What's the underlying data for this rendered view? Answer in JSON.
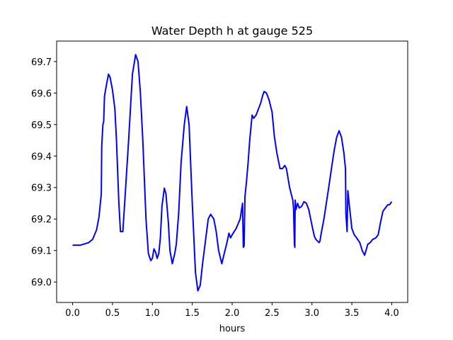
{
  "chart_data": {
    "type": "line",
    "title": "Water Depth h at gauge 525",
    "xlabel": "hours",
    "ylabel": "",
    "xlim": [
      -0.2,
      4.2
    ],
    "ylim": [
      68.935,
      69.765
    ],
    "xticks": [
      "0.0",
      "0.5",
      "1.0",
      "1.5",
      "2.0",
      "2.5",
      "3.0",
      "3.5",
      "4.0"
    ],
    "yticks": [
      "69.0",
      "69.1",
      "69.2",
      "69.3",
      "69.4",
      "69.5",
      "69.6",
      "69.7"
    ],
    "grid": false,
    "color": "#0000ff",
    "series": [
      {
        "name": "",
        "points": [
          [
            0.0,
            69.117
          ],
          [
            0.1,
            69.117
          ],
          [
            0.2,
            69.125
          ],
          [
            0.25,
            69.135
          ],
          [
            0.3,
            69.165
          ],
          [
            0.33,
            69.205
          ],
          [
            0.36,
            69.28
          ],
          [
            0.365,
            69.43
          ],
          [
            0.38,
            69.5
          ],
          [
            0.39,
            69.51
          ],
          [
            0.4,
            69.59
          ],
          [
            0.42,
            69.62
          ],
          [
            0.45,
            69.66
          ],
          [
            0.47,
            69.65
          ],
          [
            0.5,
            69.61
          ],
          [
            0.53,
            69.55
          ],
          [
            0.55,
            69.45
          ],
          [
            0.58,
            69.25
          ],
          [
            0.6,
            69.16
          ],
          [
            0.63,
            69.16
          ],
          [
            0.65,
            69.24
          ],
          [
            0.7,
            69.44
          ],
          [
            0.75,
            69.66
          ],
          [
            0.79,
            69.722
          ],
          [
            0.82,
            69.7
          ],
          [
            0.85,
            69.6
          ],
          [
            0.88,
            69.45
          ],
          [
            0.92,
            69.2
          ],
          [
            0.95,
            69.09
          ],
          [
            0.98,
            69.068
          ],
          [
            1.0,
            69.075
          ],
          [
            1.02,
            69.105
          ],
          [
            1.04,
            69.095
          ],
          [
            1.06,
            69.075
          ],
          [
            1.08,
            69.09
          ],
          [
            1.1,
            69.14
          ],
          [
            1.12,
            69.24
          ],
          [
            1.15,
            69.298
          ],
          [
            1.17,
            69.28
          ],
          [
            1.2,
            69.19
          ],
          [
            1.22,
            69.1
          ],
          [
            1.25,
            69.058
          ],
          [
            1.28,
            69.09
          ],
          [
            1.3,
            69.12
          ],
          [
            1.33,
            69.22
          ],
          [
            1.36,
            69.38
          ],
          [
            1.4,
            69.5
          ],
          [
            1.43,
            69.557
          ],
          [
            1.46,
            69.5
          ],
          [
            1.5,
            69.25
          ],
          [
            1.54,
            69.03
          ],
          [
            1.57,
            68.972
          ],
          [
            1.6,
            68.99
          ],
          [
            1.63,
            69.06
          ],
          [
            1.66,
            69.12
          ],
          [
            1.7,
            69.2
          ],
          [
            1.73,
            69.215
          ],
          [
            1.77,
            69.2
          ],
          [
            1.8,
            69.16
          ],
          [
            1.83,
            69.1
          ],
          [
            1.87,
            69.058
          ],
          [
            1.9,
            69.09
          ],
          [
            1.93,
            69.12
          ],
          [
            1.96,
            69.155
          ],
          [
            1.98,
            69.14
          ],
          [
            2.0,
            69.15
          ],
          [
            2.05,
            69.17
          ],
          [
            2.1,
            69.2
          ],
          [
            2.13,
            69.25
          ],
          [
            2.14,
            69.11
          ],
          [
            2.15,
            69.115
          ],
          [
            2.16,
            69.27
          ],
          [
            2.18,
            69.32
          ],
          [
            2.2,
            69.38
          ],
          [
            2.22,
            69.45
          ],
          [
            2.25,
            69.53
          ],
          [
            2.27,
            69.52
          ],
          [
            2.3,
            69.53
          ],
          [
            2.33,
            69.55
          ],
          [
            2.36,
            69.57
          ],
          [
            2.38,
            69.59
          ],
          [
            2.4,
            69.605
          ],
          [
            2.43,
            69.6
          ],
          [
            2.46,
            69.58
          ],
          [
            2.5,
            69.54
          ],
          [
            2.53,
            69.46
          ],
          [
            2.56,
            69.41
          ],
          [
            2.6,
            69.36
          ],
          [
            2.63,
            69.36
          ],
          [
            2.66,
            69.37
          ],
          [
            2.68,
            69.36
          ],
          [
            2.72,
            69.3
          ],
          [
            2.76,
            69.26
          ],
          [
            2.77,
            69.23
          ],
          [
            2.78,
            69.12
          ],
          [
            2.785,
            69.11
          ],
          [
            2.79,
            69.26
          ],
          [
            2.8,
            69.23
          ],
          [
            2.82,
            69.25
          ],
          [
            2.84,
            69.235
          ],
          [
            2.87,
            69.24
          ],
          [
            2.9,
            69.255
          ],
          [
            2.93,
            69.25
          ],
          [
            2.96,
            69.23
          ],
          [
            3.0,
            69.18
          ],
          [
            3.03,
            69.145
          ],
          [
            3.05,
            69.135
          ],
          [
            3.07,
            69.13
          ],
          [
            3.09,
            69.125
          ],
          [
            3.1,
            69.13
          ],
          [
            3.12,
            69.16
          ],
          [
            3.15,
            69.2
          ],
          [
            3.18,
            69.25
          ],
          [
            3.21,
            69.3
          ],
          [
            3.25,
            69.37
          ],
          [
            3.28,
            69.42
          ],
          [
            3.31,
            69.46
          ],
          [
            3.34,
            69.48
          ],
          [
            3.37,
            69.46
          ],
          [
            3.4,
            69.41
          ],
          [
            3.42,
            69.36
          ],
          [
            3.425,
            69.22
          ],
          [
            3.43,
            69.2
          ],
          [
            3.44,
            69.16
          ],
          [
            3.45,
            69.29
          ],
          [
            3.47,
            69.24
          ],
          [
            3.5,
            69.17
          ],
          [
            3.53,
            69.15
          ],
          [
            3.56,
            69.14
          ],
          [
            3.6,
            69.125
          ],
          [
            3.63,
            69.1
          ],
          [
            3.66,
            69.085
          ],
          [
            3.7,
            69.12
          ],
          [
            3.73,
            69.125
          ],
          [
            3.76,
            69.135
          ],
          [
            3.8,
            69.14
          ],
          [
            3.83,
            69.15
          ],
          [
            3.86,
            69.19
          ],
          [
            3.89,
            69.225
          ],
          [
            3.92,
            69.235
          ],
          [
            3.95,
            69.245
          ],
          [
            3.97,
            69.245
          ],
          [
            4.0,
            69.255
          ]
        ]
      }
    ]
  }
}
